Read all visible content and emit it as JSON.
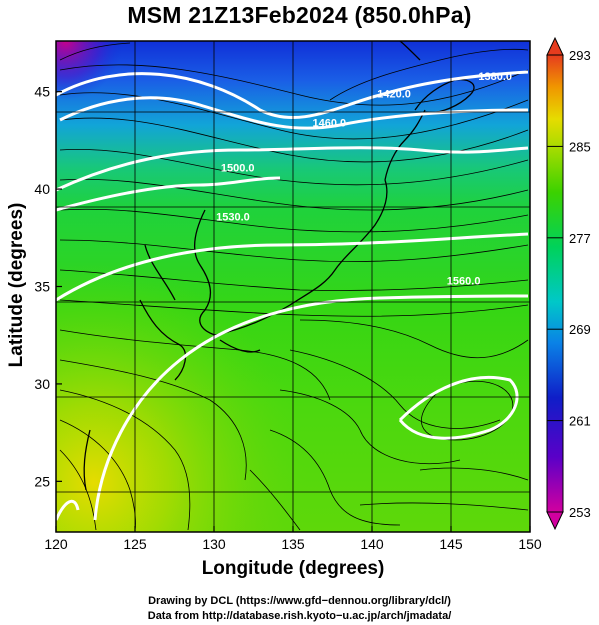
{
  "title": "MSM 21Z13Feb2024 (850.0hPa)",
  "axes": {
    "xlabel": "Longitude (degrees)",
    "ylabel": "Latitude  (degrees)",
    "xlim": [
      120,
      150
    ],
    "ylim": [
      22.4,
      47.6
    ],
    "xticks": [
      120,
      125,
      130,
      135,
      140,
      145,
      150
    ],
    "yticks": [
      25,
      30,
      35,
      40,
      45
    ]
  },
  "colorbar": {
    "min": 253,
    "max": 293,
    "tick_labels": [
      "293",
      "285",
      "277",
      "269",
      "261",
      "253"
    ],
    "tick_values": [
      293,
      285,
      277,
      269,
      261,
      253
    ]
  },
  "chart_data": {
    "type": "heatmap",
    "title": "MSM 21Z13Feb2024 (850.0hPa)",
    "xlabel": "Longitude (degrees)",
    "ylabel": "Latitude  (degrees)",
    "xlim": [
      120,
      150
    ],
    "ylim": [
      22.4,
      47.6
    ],
    "field": "temperature (shading) with wind streamlines and height contours",
    "temperature_range": [
      253,
      293
    ],
    "height_contours": [
      {
        "label": "1380.0",
        "lon": 147.8,
        "lat": 45.6
      },
      {
        "label": "1420.0",
        "lon": 141.4,
        "lat": 44.7
      },
      {
        "label": "1460.0",
        "lon": 137.3,
        "lat": 43.2
      },
      {
        "label": "1500.0",
        "lon": 131.5,
        "lat": 40.9
      },
      {
        "label": "1530.0",
        "lon": 131.2,
        "lat": 38.4
      },
      {
        "label": "1560.0",
        "lon": 145.8,
        "lat": 35.1
      }
    ],
    "grid": true
  },
  "credits": {
    "line1": "Drawing by DCL (https://www.gfd−dennou.org/library/dcl/)",
    "line2": "Data from http://database.rish.kyoto−u.ac.jp/arch/jmadata/"
  }
}
